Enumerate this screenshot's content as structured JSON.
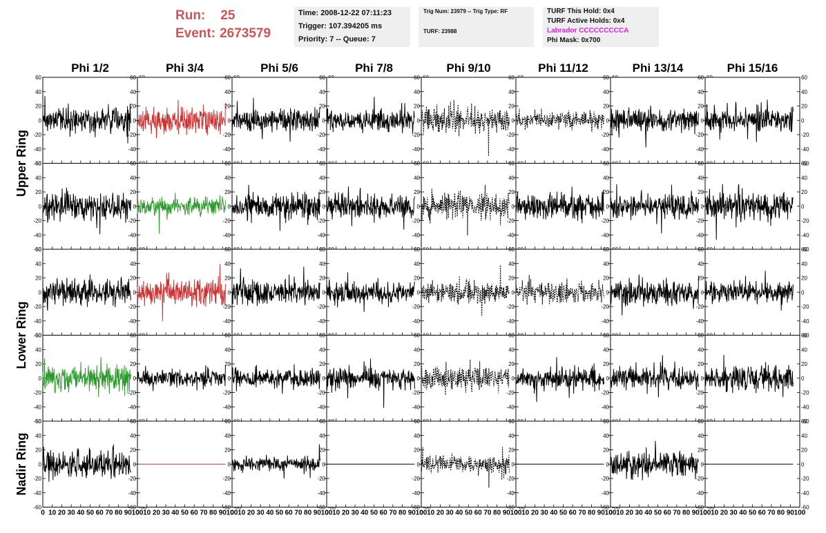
{
  "header": {
    "run_label": "Run:",
    "run_value": "25",
    "event_label": "Event:",
    "event_value": "2673579",
    "time_line": "Time: 2008-12-22 07:11:23",
    "trigger_line": "Trigger: 107.394205 ms",
    "priority_line": "Priority: 7 -- Queue: 7",
    "trig_line": "Trig Num: 23979 -- Trig Type: RF",
    "turf_line": "TURF: 23988",
    "turf_hold_line": "TURF This Hold: 0x4",
    "turf_active_line": "TURF Active Holds: 0x4",
    "labrador_line": "Labrador CCCCCCCCCA",
    "phi_mask_line": "Phi Mask: 0x700",
    "labrador_color": "#e020e0",
    "run_color": "#cc5555"
  },
  "chart_data": {
    "type": "line",
    "columns": [
      "Phi 1/2",
      "Phi 3/4",
      "Phi 5/6",
      "Phi 7/8",
      "Phi 9/10",
      "Phi 11/12",
      "Phi 13/14",
      "Phi 15/16"
    ],
    "row_groups": [
      {
        "label": "Upper Ring",
        "rows": [
          0,
          1
        ]
      },
      {
        "label": "Lower Ring",
        "rows": [
          2,
          3
        ]
      },
      {
        "label": "Nadir Ring",
        "rows": [
          4
        ]
      }
    ],
    "xlim": [
      0,
      100
    ],
    "ylim": [
      -60,
      60
    ],
    "x_ticks": [
      0,
      10,
      20,
      30,
      40,
      50,
      60,
      70,
      80,
      90,
      100
    ],
    "x_tick_labels": [
      "0",
      "10",
      "20",
      "30",
      "40",
      "50",
      "60",
      "70",
      "80",
      "90",
      "100"
    ],
    "y_ticks": [
      -60,
      -40,
      -20,
      0,
      20,
      40,
      60
    ],
    "y_tick_labels": [
      "-60",
      "-40",
      "-20",
      "0",
      "20",
      "40",
      "60"
    ],
    "note_waveforms": "each panel shows a noisy waveform of roughly 260 samples spanning x 0-93; amplitude values are approximate",
    "panels": [
      [
        {
          "style": "solid",
          "color": "#000000",
          "amp": 15,
          "seed": 11
        },
        {
          "style": "solid",
          "color": "#cc3333",
          "amp": 16,
          "seed": 12
        },
        {
          "style": "solid",
          "color": "#000000",
          "amp": 15,
          "seed": 13
        },
        {
          "style": "solid",
          "color": "#000000",
          "amp": 13,
          "seed": 14
        },
        {
          "style": "dotted",
          "color": "#000000",
          "amp": 15,
          "seed": 15
        },
        {
          "style": "dotted",
          "color": "#000000",
          "amp": 11,
          "seed": 16
        },
        {
          "style": "solid",
          "color": "#000000",
          "amp": 15,
          "seed": 17
        },
        {
          "style": "solid",
          "color": "#000000",
          "amp": 14,
          "seed": 18
        }
      ],
      [
        {
          "style": "solid",
          "color": "#000000",
          "amp": 17,
          "seed": 21
        },
        {
          "style": "solid",
          "color": "#2e9a2e",
          "amp": 12,
          "seed": 22
        },
        {
          "style": "solid",
          "color": "#000000",
          "amp": 15,
          "seed": 23
        },
        {
          "style": "solid",
          "color": "#000000",
          "amp": 15,
          "seed": 24
        },
        {
          "style": "dotted",
          "color": "#000000",
          "amp": 17,
          "seed": 25
        },
        {
          "style": "solid",
          "color": "#000000",
          "amp": 15,
          "seed": 26
        },
        {
          "style": "solid",
          "color": "#000000",
          "amp": 15,
          "seed": 27
        },
        {
          "style": "solid",
          "color": "#000000",
          "amp": 17,
          "seed": 28
        }
      ],
      [
        {
          "style": "solid",
          "color": "#000000",
          "amp": 15,
          "seed": 31
        },
        {
          "style": "solid",
          "color": "#cc3333",
          "amp": 17,
          "seed": 32
        },
        {
          "style": "solid",
          "color": "#000000",
          "amp": 15,
          "seed": 33
        },
        {
          "style": "solid",
          "color": "#000000",
          "amp": 14,
          "seed": 34
        },
        {
          "style": "dotted",
          "color": "#000000",
          "amp": 14,
          "seed": 35
        },
        {
          "style": "dotted",
          "color": "#000000",
          "amp": 13,
          "seed": 36
        },
        {
          "style": "solid",
          "color": "#000000",
          "amp": 15,
          "seed": 37
        },
        {
          "style": "solid",
          "color": "#000000",
          "amp": 13,
          "seed": 38
        }
      ],
      [
        {
          "style": "solid",
          "color": "#2e9a2e",
          "amp": 17,
          "seed": 41
        },
        {
          "style": "solid",
          "color": "#000000",
          "amp": 12,
          "seed": 42
        },
        {
          "style": "solid",
          "color": "#000000",
          "amp": 12,
          "seed": 43
        },
        {
          "style": "solid",
          "color": "#000000",
          "amp": 13,
          "seed": 44
        },
        {
          "style": "dotted",
          "color": "#000000",
          "amp": 15,
          "seed": 45
        },
        {
          "style": "solid",
          "color": "#000000",
          "amp": 13,
          "seed": 46
        },
        {
          "style": "solid",
          "color": "#000000",
          "amp": 14,
          "seed": 47
        },
        {
          "style": "solid",
          "color": "#000000",
          "amp": 15,
          "seed": 48
        }
      ],
      [
        {
          "style": "solid",
          "color": "#000000",
          "amp": 15,
          "seed": 51
        },
        {
          "style": "flat",
          "color": "#cc3333",
          "amp": 0,
          "seed": 52
        },
        {
          "style": "solid",
          "color": "#000000",
          "amp": 9,
          "seed": 53
        },
        {
          "style": "flat",
          "color": "#000000",
          "amp": 0,
          "seed": 54
        },
        {
          "style": "dotted",
          "color": "#000000",
          "amp": 11,
          "seed": 55
        },
        {
          "style": "flat",
          "color": "#000000",
          "amp": 0,
          "seed": 56
        },
        {
          "style": "solid",
          "color": "#000000",
          "amp": 15,
          "seed": 57
        },
        {
          "style": "flat",
          "color": "#000000",
          "amp": 0,
          "seed": 58
        }
      ]
    ]
  }
}
